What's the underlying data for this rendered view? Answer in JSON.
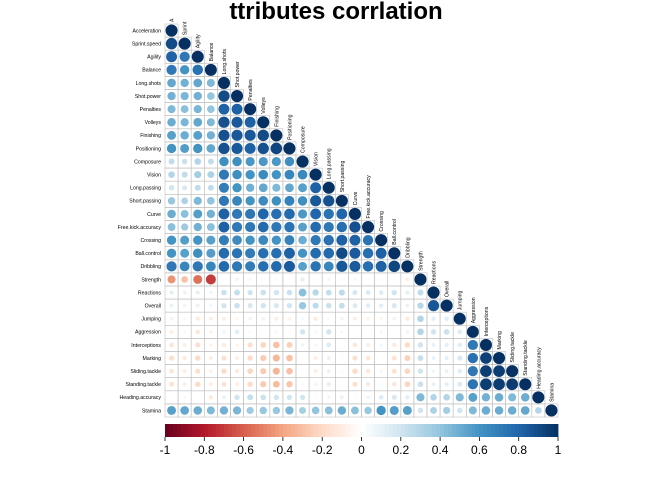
{
  "chart_data": {
    "type": "heatmap",
    "subtype": "correlation-circle-lower",
    "title": "ttributes corrlation",
    "variables": [
      "Acceleration",
      "Sprint_speed",
      "Agility",
      "Balance",
      "Long_shots",
      "Shot_power",
      "Penalties",
      "Volleys",
      "Finishing",
      "Positioning",
      "Composure",
      "Vision",
      "Long_passing",
      "Short_passing",
      "Curve",
      "Free_kick_accuracy",
      "Crossing",
      "Ball_control",
      "Dribbling",
      "Strength",
      "Reactions",
      "Overall",
      "Jumping",
      "Aggression",
      "Interceptions",
      "Marking",
      "Sliding_tackle",
      "Standing_tackle",
      "Heading_accuracy",
      "Stamina"
    ],
    "column_labels": [
      "A",
      "Sprint",
      "Agility",
      "Balance",
      "Long.shots",
      "Shot.power",
      "Penalties",
      "Volleys",
      "Finishing",
      "Positioning",
      "Composure",
      "Vision",
      "Long.passing",
      "Short.passing",
      "Curve",
      "Free.kick.accuracy",
      "Crossing",
      "Ball.control",
      "Dribbling",
      "Strength",
      "Reactions",
      "Overall",
      "Jumping",
      "Aggression",
      "Interceptions",
      "Marking",
      "Sliding.tackle",
      "Standing.tackle",
      "Heading.accuracy",
      "Stamina"
    ],
    "row_labels": [
      "Acceleration",
      "Sprint.speed",
      "Agility",
      "Balance",
      "Long.shots",
      "Shot.power",
      "Penalties",
      "Volleys",
      "Finishing",
      "Positioning",
      "Composure",
      "Vision",
      "Long.passing",
      "Short.passing",
      "Curve",
      "Free.kick.accuracy",
      "Crossing",
      "Ball.control",
      "Dribbling",
      "Strength",
      "Reactions",
      "Overall",
      "Jumping",
      "Aggression",
      "Interceptions",
      "Marking",
      "Sliding.tackle",
      "Standing.tackle",
      "Heading.accuracy",
      "Stamina"
    ],
    "matrix_lower": [
      [
        1
      ],
      [
        0.9,
        1
      ],
      [
        0.82,
        0.72,
        1
      ],
      [
        0.72,
        0.6,
        0.75,
        1
      ],
      [
        0.52,
        0.48,
        0.52,
        0.45,
        1
      ],
      [
        0.48,
        0.46,
        0.48,
        0.4,
        0.9,
        1
      ],
      [
        0.45,
        0.42,
        0.46,
        0.4,
        0.82,
        0.82,
        1
      ],
      [
        0.5,
        0.46,
        0.52,
        0.45,
        0.88,
        0.85,
        0.82,
        1
      ],
      [
        0.55,
        0.5,
        0.55,
        0.48,
        0.88,
        0.85,
        0.85,
        0.9,
        1
      ],
      [
        0.6,
        0.56,
        0.6,
        0.52,
        0.88,
        0.85,
        0.82,
        0.88,
        0.92,
        1
      ],
      [
        0.25,
        0.22,
        0.3,
        0.25,
        0.62,
        0.62,
        0.58,
        0.58,
        0.58,
        0.62,
        1
      ],
      [
        0.3,
        0.25,
        0.35,
        0.32,
        0.72,
        0.62,
        0.6,
        0.64,
        0.6,
        0.66,
        0.65,
        1
      ],
      [
        0.2,
        0.18,
        0.25,
        0.25,
        0.7,
        0.6,
        0.48,
        0.52,
        0.45,
        0.52,
        0.55,
        0.82,
        1
      ],
      [
        0.38,
        0.32,
        0.45,
        0.4,
        0.72,
        0.66,
        0.6,
        0.64,
        0.62,
        0.68,
        0.62,
        0.85,
        0.88,
        1
      ],
      [
        0.5,
        0.42,
        0.56,
        0.48,
        0.82,
        0.72,
        0.72,
        0.8,
        0.76,
        0.78,
        0.58,
        0.8,
        0.74,
        0.8,
        1
      ],
      [
        0.42,
        0.36,
        0.48,
        0.42,
        0.82,
        0.72,
        0.72,
        0.78,
        0.72,
        0.74,
        0.55,
        0.78,
        0.72,
        0.76,
        0.88,
        1
      ],
      [
        0.6,
        0.56,
        0.6,
        0.55,
        0.7,
        0.64,
        0.6,
        0.65,
        0.6,
        0.68,
        0.5,
        0.72,
        0.75,
        0.82,
        0.82,
        0.74,
        1
      ],
      [
        0.6,
        0.55,
        0.62,
        0.56,
        0.78,
        0.74,
        0.7,
        0.76,
        0.76,
        0.82,
        0.6,
        0.78,
        0.78,
        0.9,
        0.84,
        0.76,
        0.82,
        1
      ],
      [
        0.72,
        0.66,
        0.72,
        0.66,
        0.78,
        0.72,
        0.7,
        0.76,
        0.78,
        0.84,
        0.55,
        0.74,
        0.66,
        0.85,
        0.84,
        0.76,
        0.82,
        0.92,
        1
      ],
      [
        -0.45,
        -0.3,
        -0.55,
        -0.7,
        -0.02,
        0.08,
        0.06,
        0.0,
        0.04,
        -0.02,
        0.12,
        -0.02,
        0.06,
        -0.04,
        -0.06,
        -0.02,
        -0.04,
        0.0,
        -0.1,
        1
      ],
      [
        0.12,
        0.1,
        0.12,
        0.08,
        0.22,
        0.24,
        0.2,
        0.22,
        0.2,
        0.22,
        0.42,
        0.28,
        0.24,
        0.26,
        0.18,
        0.16,
        0.15,
        0.2,
        0.12,
        0.25,
        1
      ],
      [
        0.1,
        0.08,
        0.1,
        0.06,
        0.2,
        0.22,
        0.18,
        0.2,
        0.18,
        0.2,
        0.38,
        0.26,
        0.22,
        0.24,
        0.16,
        0.14,
        0.12,
        0.18,
        0.1,
        0.28,
        0.86,
        1
      ],
      [
        -0.08,
        -0.05,
        -0.12,
        -0.1,
        -0.1,
        -0.05,
        -0.08,
        -0.08,
        -0.1,
        -0.08,
        0.05,
        -0.12,
        -0.04,
        -0.08,
        -0.1,
        -0.08,
        -0.06,
        -0.08,
        -0.12,
        0.3,
        0.12,
        0.14,
        1
      ],
      [
        -0.1,
        -0.06,
        -0.14,
        -0.08,
        0.08,
        0.14,
        0.04,
        0.02,
        -0.06,
        -0.04,
        0.2,
        0.06,
        0.2,
        0.06,
        -0.02,
        0.0,
        0.06,
        -0.02,
        -0.08,
        0.3,
        0.2,
        0.22,
        0.15,
        1
      ],
      [
        -0.15,
        -0.1,
        -0.18,
        -0.08,
        -0.12,
        -0.08,
        -0.18,
        -0.22,
        -0.3,
        -0.24,
        0.08,
        -0.06,
        0.15,
        0.02,
        -0.14,
        -0.1,
        0.06,
        -0.12,
        -0.2,
        0.2,
        0.1,
        0.12,
        0.14,
        0.72,
        1
      ],
      [
        -0.18,
        -0.12,
        -0.2,
        -0.1,
        -0.18,
        -0.1,
        -0.2,
        -0.26,
        -0.34,
        -0.3,
        0.04,
        -0.1,
        0.1,
        -0.04,
        -0.18,
        -0.14,
        0.02,
        -0.16,
        -0.24,
        0.24,
        0.1,
        0.12,
        0.18,
        0.75,
        0.94,
        1
      ],
      [
        -0.15,
        -0.1,
        -0.18,
        -0.08,
        -0.2,
        -0.12,
        -0.22,
        -0.26,
        -0.34,
        -0.3,
        0.02,
        -0.1,
        0.1,
        -0.04,
        -0.2,
        -0.14,
        0.06,
        -0.16,
        -0.22,
        0.2,
        0.08,
        0.1,
        0.14,
        0.72,
        0.95,
        0.95,
        1
      ],
      [
        -0.16,
        -0.1,
        -0.2,
        -0.1,
        -0.16,
        -0.1,
        -0.2,
        -0.26,
        -0.32,
        -0.28,
        0.04,
        -0.08,
        0.12,
        -0.02,
        -0.18,
        -0.12,
        0.04,
        -0.14,
        -0.22,
        0.22,
        0.1,
        0.12,
        0.16,
        0.74,
        0.95,
        0.95,
        0.96,
        1
      ],
      [
        0.0,
        0.05,
        -0.02,
        -0.12,
        0.1,
        0.2,
        0.24,
        0.22,
        0.2,
        0.2,
        0.2,
        0.04,
        0.08,
        0.1,
        0.04,
        0.08,
        0.15,
        0.18,
        0.12,
        0.45,
        0.3,
        0.3,
        0.45,
        0.55,
        0.48,
        0.5,
        0.45,
        0.5,
        1
      ],
      [
        0.55,
        0.52,
        0.5,
        0.45,
        0.48,
        0.46,
        0.36,
        0.38,
        0.38,
        0.46,
        0.34,
        0.4,
        0.42,
        0.5,
        0.42,
        0.38,
        0.6,
        0.56,
        0.55,
        0.2,
        0.32,
        0.35,
        0.2,
        0.45,
        0.5,
        0.5,
        0.5,
        0.52,
        0.3,
        1
      ]
    ],
    "colorbar": {
      "ticks": [
        "-1",
        "-0.8",
        "-0.6",
        "-0.4",
        "-0.2",
        "0",
        "0.2",
        "0.4",
        "0.6",
        "0.8",
        "1"
      ],
      "range": [
        -1,
        1
      ]
    },
    "colors": {
      "negative_strong": "#67001f",
      "negative_mid": "#d6604d",
      "negative_light": "#fddbc7",
      "neutral": "#ffffff",
      "positive_light": "#d1e5f0",
      "positive_mid": "#4393c3",
      "positive_strong": "#053061",
      "grid": "#bebebe"
    }
  }
}
